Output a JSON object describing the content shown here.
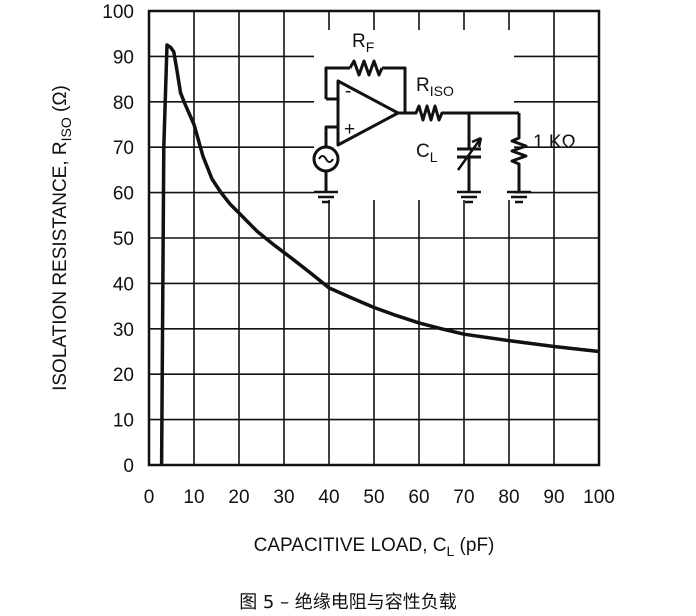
{
  "chart_data": {
    "type": "line",
    "xlabel": {
      "main": "CAPACITIVE LOAD, C",
      "sub": "L",
      "unit": " (pF)"
    },
    "ylabel": {
      "main": "ISOLATION RESISTANCE, R",
      "sub": "ISO",
      "unit": " (Ω)"
    },
    "xlim": [
      0,
      100
    ],
    "ylim": [
      0,
      100
    ],
    "xticks": [
      "0",
      "10",
      "20",
      "30",
      "40",
      "50",
      "60",
      "70",
      "80",
      "90",
      "100"
    ],
    "yticks": [
      "0",
      "10",
      "20",
      "30",
      "40",
      "50",
      "60",
      "70",
      "80",
      "90",
      "100"
    ],
    "grid": true,
    "series": [
      {
        "x": [
          2.8,
          3.3,
          4.0,
          4.8,
          5.5,
          6.2,
          7.0,
          8.0,
          10.0,
          12.0,
          14.0,
          16.0,
          18.0,
          20.0,
          24.0,
          28.0,
          32.0,
          36.0,
          40.0,
          45.0,
          50.0,
          55.0,
          60.0,
          65.0,
          70.0,
          80.0,
          90.0,
          100.0
        ],
        "y": [
          0,
          70,
          92.5,
          92,
          91,
          87,
          82,
          79.5,
          75,
          68,
          63,
          60,
          57.5,
          55.5,
          51.5,
          48.3,
          45.3,
          42.2,
          39,
          36.8,
          34.7,
          32.9,
          31.3,
          30,
          28.8,
          27.4,
          26.1,
          25
        ]
      }
    ],
    "inset": {
      "rf_main": "R",
      "rf_sub": "F",
      "riso_main": "R",
      "riso_sub": "ISO",
      "cl_main": "C",
      "cl_sub": "L",
      "load_label": "1 KΩ",
      "minus": "-",
      "plus": "+"
    }
  },
  "caption": "图 5 – 绝缘电阻与容性负载"
}
